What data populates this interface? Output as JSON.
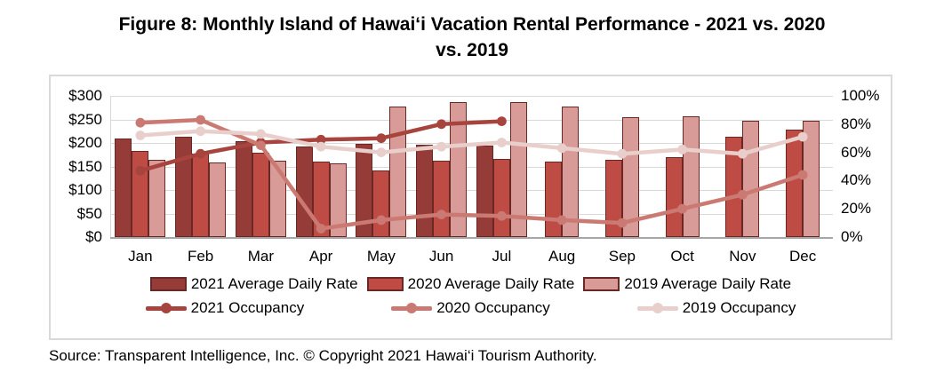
{
  "header": {
    "title": "Figure 8: Monthly Island of Hawai‘i Vacation Rental Performance - 2021 vs. 2020 vs. 2019",
    "title_line1": "Figure 8: Monthly Island of Hawai‘i Vacation Rental Performance - 2021 vs. 2020",
    "title_line2": "vs. 2019"
  },
  "source": {
    "text": "Source: Transparent Intelligence, Inc.  © Copyright 2021 Hawai‘i Tourism Authority."
  },
  "chart_data": {
    "type": "bar+line combo",
    "title": "Figure 8: Monthly Island of Hawai‘i Vacation Rental Performance - 2021 vs. 2020 vs. 2019",
    "categories": [
      "Jan",
      "Feb",
      "Mar",
      "Apr",
      "May",
      "Jun",
      "Jul",
      "Aug",
      "Sep",
      "Oct",
      "Nov",
      "Dec"
    ],
    "grid": true,
    "legend_position": "bottom",
    "left_axis": {
      "title": "Average Daily Rate ($)",
      "min": 0,
      "max": 300,
      "step": 50,
      "ticks_top_to_bottom": [
        "$300",
        "$250",
        "$200",
        "$150",
        "$100",
        "$50",
        "$0"
      ]
    },
    "right_axis": {
      "title": "Occupancy (%)",
      "min": 0,
      "max": 100,
      "step": 20,
      "ticks_top_to_bottom": [
        "100%",
        "80%",
        "60%",
        "40%",
        "20%",
        "0%"
      ]
    },
    "bar_series": [
      {
        "name": "2021 Average Daily Rate",
        "color": "#953B38",
        "stroke": "#6A2825",
        "values": [
          209,
          213,
          204,
          193,
          199,
          196,
          194,
          null,
          null,
          null,
          null,
          null
        ]
      },
      {
        "name": "2020 Average Daily Rate",
        "color": "#BF4B45",
        "stroke": "#6A2825",
        "values": [
          183,
          178,
          180,
          160,
          142,
          162,
          167,
          161,
          164,
          169,
          213,
          229
        ]
      },
      {
        "name": "2019 Average Daily Rate",
        "color": "#D89B97",
        "stroke": "#6A2825",
        "values": [
          164,
          159,
          163,
          156,
          278,
          287,
          287,
          277,
          255,
          256,
          248,
          248
        ]
      }
    ],
    "line_series": [
      {
        "name": "2021 Occupancy",
        "color": "#A6443D",
        "values": [
          47,
          59,
          67,
          69,
          70,
          80,
          82,
          null,
          null,
          null,
          null,
          null
        ]
      },
      {
        "name": "2020 Occupancy",
        "color": "#CA7A72",
        "values": [
          81,
          83,
          65,
          6,
          12,
          16,
          15,
          12,
          10,
          20,
          30,
          44
        ]
      },
      {
        "name": "2019 Occupancy",
        "color": "#E9CFCB",
        "values": [
          72,
          75,
          73,
          64,
          60,
          64,
          67,
          63,
          59,
          62,
          59,
          71
        ]
      }
    ],
    "colors": {
      "gridline": "#D9D9D9",
      "axis_line": "#A6A6A6",
      "box_border": "#D9D9D9",
      "text": "#000000"
    }
  }
}
